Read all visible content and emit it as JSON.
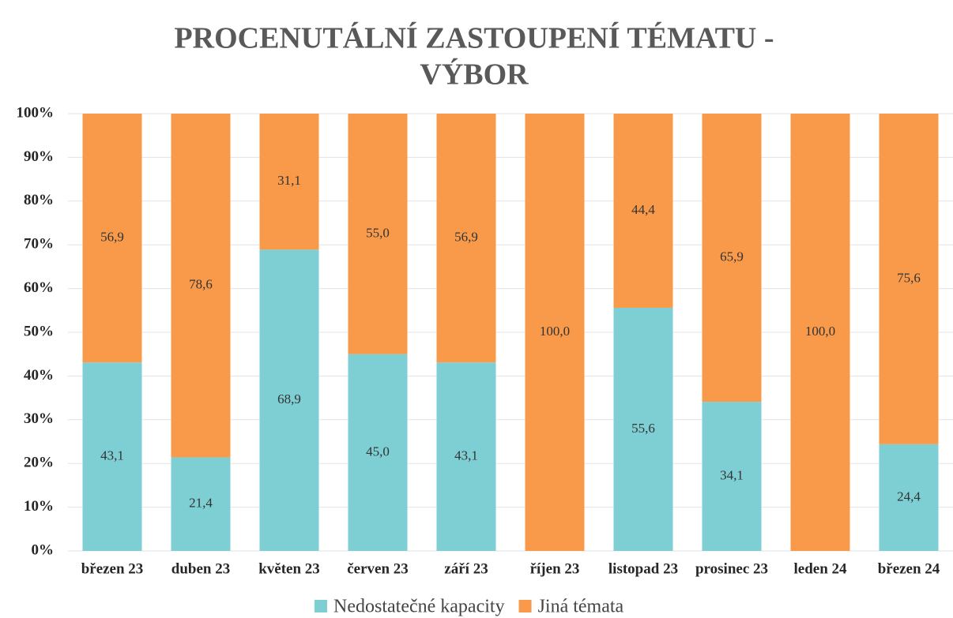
{
  "chart_data": {
    "type": "stacked_bar",
    "title": [
      "PROCENUTÁLNÍ ZASTOUPENÍ TÉMATU -",
      "VÝBOR"
    ],
    "categories": [
      "březen 23",
      "duben 23",
      "květen 23",
      "červen 23",
      "září 23",
      "říjen 23",
      "listopad 23",
      "prosinec 23",
      "leden 24",
      "březen 24"
    ],
    "series": [
      {
        "name": "Nedostatečné kapacity",
        "color": "#7ecfd4",
        "values": [
          43.1,
          21.4,
          68.9,
          45.0,
          43.1,
          0,
          55.6,
          34.1,
          0,
          24.4
        ],
        "value_labels": [
          "43,1",
          "21,4",
          "68,9",
          "45,0",
          "43,1",
          null,
          "55,6",
          "34,1",
          null,
          "24,4"
        ]
      },
      {
        "name": "Jiná témata",
        "color": "#f89a4a",
        "values": [
          56.9,
          78.6,
          31.1,
          55.0,
          56.9,
          100,
          44.4,
          65.9,
          100,
          75.6
        ],
        "value_labels": [
          "56,9",
          "78,6",
          "31,1",
          "55,0",
          "56,9",
          "100,0",
          "44,4",
          "65,9",
          "100,0",
          "75,6"
        ]
      }
    ],
    "ylim": [
      0,
      100
    ],
    "yticks": [
      {
        "value": 0,
        "label": "0%"
      },
      {
        "value": 10,
        "label": "10%"
      },
      {
        "value": 20,
        "label": "20%"
      },
      {
        "value": 30,
        "label": "30%"
      },
      {
        "value": 40,
        "label": "40%"
      },
      {
        "value": 50,
        "label": "50%"
      },
      {
        "value": 60,
        "label": "60%"
      },
      {
        "value": 70,
        "label": "70%"
      },
      {
        "value": 80,
        "label": "80%"
      },
      {
        "value": 90,
        "label": "90%"
      },
      {
        "value": 100,
        "label": "100%"
      }
    ],
    "grid": true,
    "legend": "bottom"
  }
}
